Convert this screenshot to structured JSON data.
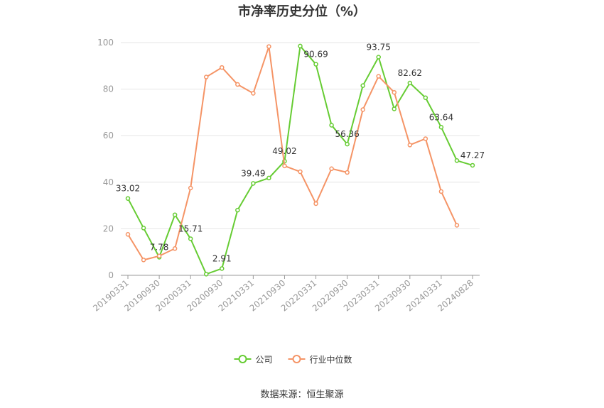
{
  "chart_data": {
    "type": "line",
    "title": "市净率历史分位（%）",
    "xlabel": "",
    "ylabel": "",
    "ylim": [
      0,
      100
    ],
    "yticks": [
      "0",
      "20",
      "40",
      "60",
      "80",
      "100"
    ],
    "x": [
      "20190331",
      "20190630",
      "20190930",
      "20191231",
      "20200331",
      "20200630",
      "20200930",
      "20201231",
      "20210331",
      "20210630",
      "20210930",
      "20211231",
      "20220331",
      "20220630",
      "20220930",
      "20221231",
      "20230331",
      "20230630",
      "20230930",
      "20231231",
      "20240331",
      "20240630",
      "20240828"
    ],
    "xtick_labels": [
      "20190331",
      "20190930",
      "20200331",
      "20200930",
      "20210331",
      "20210930",
      "20220331",
      "20220930",
      "20230331",
      "20230930",
      "20240331",
      "20240828"
    ],
    "series": [
      {
        "name": "公司",
        "color": "#66cc33",
        "values": [
          33.02,
          20.3,
          7.78,
          26.0,
          15.71,
          0.5,
          2.91,
          28.0,
          39.49,
          41.8,
          49.02,
          98.5,
          90.69,
          64.5,
          56.36,
          81.5,
          93.75,
          71.5,
          82.62,
          76.3,
          63.64,
          49.3,
          47.27
        ],
        "labels": {
          "0": "33.02",
          "2": "7.78",
          "4": "15.71",
          "6": "2.91",
          "8": "39.49",
          "10": "49.02",
          "12": "90.69",
          "14": "56.36",
          "16": "93.75",
          "18": "82.62",
          "20": "63.64",
          "22": "47.27"
        }
      },
      {
        "name": "行业中位数",
        "color": "#f59466",
        "values": [
          17.6,
          6.6,
          8.3,
          11.5,
          37.5,
          85.2,
          89.3,
          82.0,
          78.2,
          98.3,
          47.0,
          44.5,
          30.8,
          45.8,
          44.2,
          71.2,
          85.5,
          78.6,
          56.0,
          58.7,
          36.0,
          21.5,
          null
        ]
      }
    ],
    "grid": true,
    "legend": "bottom-center"
  },
  "source": "数据来源：恒生聚源"
}
